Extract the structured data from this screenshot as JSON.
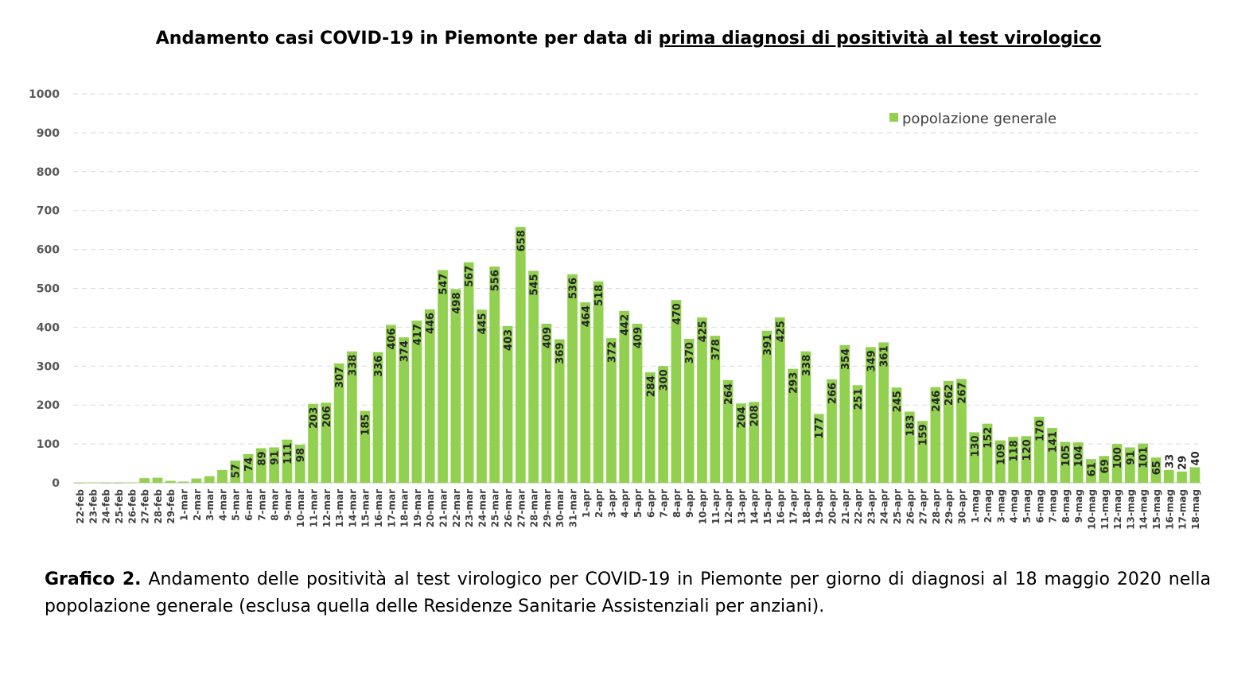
{
  "chart_data": {
    "type": "bar",
    "title_plain": "Andamento casi COVID-19 in Piemonte per data di ",
    "title_underlined": "prima diagnosi di positività al test virologico",
    "ylim": [
      0,
      1000
    ],
    "yticks": [
      0,
      100,
      200,
      300,
      400,
      500,
      600,
      700,
      800,
      900,
      1000
    ],
    "grid": true,
    "legend_position": "top-right",
    "bar_color": "#92D050",
    "series": [
      {
        "name": "popolazione generale"
      }
    ],
    "categories": [
      "22-feb",
      "23-feb",
      "24-feb",
      "25-feb",
      "26-feb",
      "27-feb",
      "28-feb",
      "29-feb",
      "1-mar",
      "2-mar",
      "3-mar",
      "4-mar",
      "5-mar",
      "6-mar",
      "7-mar",
      "8-mar",
      "9-mar",
      "10-mar",
      "11-mar",
      "12-mar",
      "13-mar",
      "14-mar",
      "15-mar",
      "16-mar",
      "17-mar",
      "18-mar",
      "19-mar",
      "20-mar",
      "21-mar",
      "22-mar",
      "23-mar",
      "24-mar",
      "25-mar",
      "26-mar",
      "27-mar",
      "28-mar",
      "29-mar",
      "30-mar",
      "31-mar",
      "1-apr",
      "2-apr",
      "3-apr",
      "4-apr",
      "5-apr",
      "6-apr",
      "7-apr",
      "8-apr",
      "9-apr",
      "10-apr",
      "11-apr",
      "12-apr",
      "13-apr",
      "14-apr",
      "15-apr",
      "16-apr",
      "17-apr",
      "18-apr",
      "19-apr",
      "20-apr",
      "21-apr",
      "22-apr",
      "23-apr",
      "24-apr",
      "25-apr",
      "26-apr",
      "27-apr",
      "28-apr",
      "29-apr",
      "30-apr",
      "1-mag",
      "2-mag",
      "3-mag",
      "4-mag",
      "5-mag",
      "6-mag",
      "7-mag",
      "8-mag",
      "9-mag",
      "10-mag",
      "11-mag",
      "12-mag",
      "13-mag",
      "14-mag",
      "15-mag",
      "16-mag",
      "17-mag",
      "18-mag"
    ],
    "values": [
      0,
      1,
      0,
      0,
      1,
      12,
      13,
      5,
      3,
      11,
      17,
      33,
      57,
      74,
      89,
      91,
      111,
      98,
      203,
      206,
      307,
      338,
      185,
      336,
      406,
      374,
      417,
      446,
      547,
      498,
      567,
      445,
      556,
      403,
      658,
      545,
      409,
      369,
      536,
      464,
      518,
      372,
      442,
      409,
      284,
      300,
      470,
      370,
      425,
      378,
      264,
      204,
      208,
      391,
      425,
      293,
      338,
      177,
      266,
      354,
      251,
      349,
      361,
      245,
      183,
      159,
      246,
      262,
      267,
      130,
      152,
      109,
      118,
      120,
      170,
      141,
      105,
      104,
      61,
      69,
      100,
      91,
      101,
      65,
      33,
      29,
      40
    ],
    "first_labeled_index": 12
  },
  "caption": {
    "bold": "Grafico 2.",
    "text": " Andamento delle positività al test virologico per COVID-19 in Piemonte per giorno di diagnosi al 18 maggio 2020 nella popolazione generale (esclusa quella delle Residenze Sanitarie Assistenziali per anziani)."
  }
}
